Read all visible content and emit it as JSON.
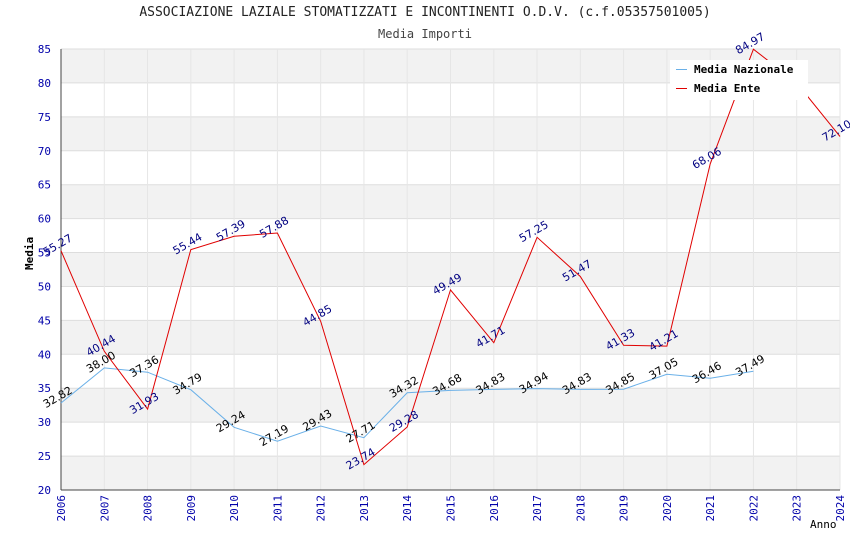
{
  "title": "ASSOCIAZIONE LAZIALE STOMATIZZATI E INCONTINENTI O.D.V. (c.f.05357501005)",
  "subtitle": "Media Importi",
  "colors": {
    "nazionale": "#6ab0e8",
    "ente": "#e00000",
    "tick": "#0000aa",
    "label_naz": "#000000",
    "label_ente": "#000080"
  },
  "chart_data": {
    "type": "line",
    "title": "ASSOCIAZIONE LAZIALE STOMATIZZATI E INCONTINENTI O.D.V. (c.f.05357501005)",
    "subtitle": "Media Importi",
    "xlabel": "Anno",
    "ylabel": "Media",
    "ylim": [
      20,
      85
    ],
    "yticks": [
      "20",
      "25",
      "30",
      "35",
      "40",
      "45",
      "50",
      "55",
      "60",
      "65",
      "70",
      "75",
      "80",
      "85"
    ],
    "x": [
      "2006",
      "2007",
      "2008",
      "2009",
      "2010",
      "2011",
      "2012",
      "2013",
      "2014",
      "2015",
      "2016",
      "2017",
      "2018",
      "2019",
      "2020",
      "2021",
      "2022",
      "2023",
      "2024"
    ],
    "grid": "horizontal bands",
    "legend_position": "top-right",
    "series": [
      {
        "name": "Media Nazionale",
        "values": [
          32.82,
          38.0,
          37.36,
          34.79,
          29.24,
          27.19,
          29.43,
          27.71,
          34.32,
          34.68,
          34.83,
          34.94,
          34.83,
          34.85,
          37.05,
          36.46,
          37.49,
          null,
          null
        ],
        "labels": [
          "32.82",
          "38.00",
          "37.36",
          "34.79",
          "29.24",
          "27.19",
          "29.43",
          "27.71",
          "34.32",
          "34.68",
          "34.83",
          "34.94",
          "34.83",
          "34.85",
          "37.05",
          "36.46",
          "37.49",
          "",
          ""
        ]
      },
      {
        "name": "Media Ente",
        "values": [
          55.27,
          40.44,
          31.93,
          55.44,
          57.39,
          57.88,
          44.85,
          23.74,
          29.28,
          49.49,
          41.71,
          57.25,
          51.47,
          41.33,
          41.21,
          68.06,
          84.97,
          80.0,
          72.1
        ],
        "labels": [
          "55.27",
          "40.44",
          "31.93",
          "55.44",
          "57.39",
          "57.88",
          "44.85",
          "23.74",
          "29.28",
          "49.49",
          "41.71",
          "57.25",
          "51.47",
          "41.33",
          "41.21",
          "68.06",
          "84.97",
          "",
          "72.10"
        ]
      }
    ]
  }
}
